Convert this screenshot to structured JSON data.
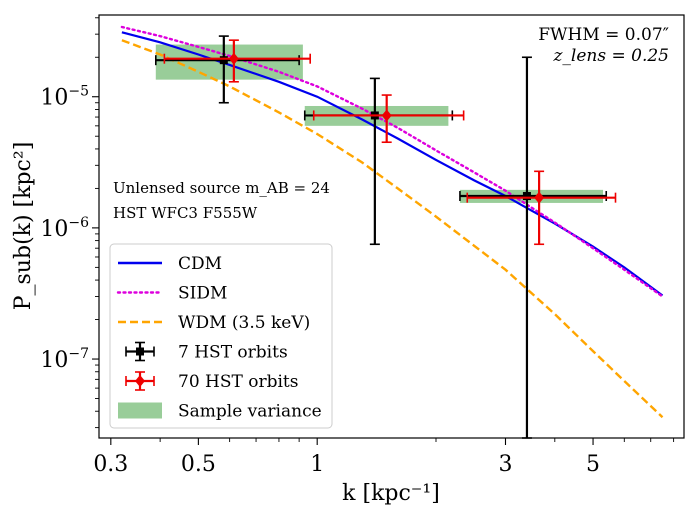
{
  "chart_data": {
    "type": "line",
    "xscale": "log",
    "yscale": "log",
    "xlim": [
      0.28,
      8.5
    ],
    "ylim": [
      2.5e-08,
      4.2e-05
    ],
    "xlabel": "k [kpc⁻¹]",
    "ylabel": "P_sub(k) [kpc²]",
    "xticks": [
      {
        "value": 0.3,
        "label": "0.3"
      },
      {
        "value": 0.5,
        "label": "0.5"
      },
      {
        "value": 1,
        "label": "1"
      },
      {
        "value": 3,
        "label": "3"
      },
      {
        "value": 5,
        "label": "5"
      }
    ],
    "yticks": [
      {
        "value": 1e-07,
        "base": "10",
        "exp": "−7"
      },
      {
        "value": 1e-06,
        "base": "10",
        "exp": "−6"
      },
      {
        "value": 1e-05,
        "base": "10",
        "exp": "−5"
      }
    ],
    "annotations": {
      "fwhm": "FWHM = 0.07″",
      "zlens": "z_lens = 0.25",
      "source": "Unlensed source m_AB = 24",
      "instrument": "HST WFC3 F555W"
    },
    "series": [
      {
        "name": "CDM",
        "style": "solid",
        "color": "#0000ee",
        "x": [
          0.32,
          0.4,
          0.5,
          0.6,
          0.8,
          1.0,
          1.3,
          1.6,
          2.0,
          2.5,
          3.0,
          3.5,
          4.0,
          5.0,
          6.0,
          7.5
        ],
        "y": [
          3.1e-05,
          2.6e-05,
          2.1e-05,
          1.75e-05,
          1.3e-05,
          1e-05,
          6.7e-06,
          4.8e-06,
          3.3e-06,
          2.3e-06,
          1.75e-06,
          1.35e-06,
          1.08e-06,
          7.2e-07,
          5e-07,
          3.05e-07
        ]
      },
      {
        "name": "SIDM",
        "style": "dotted",
        "color": "#dd00dd",
        "x": [
          0.32,
          0.4,
          0.5,
          0.6,
          0.8,
          1.0,
          1.3,
          1.6,
          2.0,
          2.5,
          3.0,
          3.5,
          4.0,
          5.0,
          6.0,
          7.5
        ],
        "y": [
          3.4e-05,
          2.9e-05,
          2.4e-05,
          2.05e-05,
          1.55e-05,
          1.2e-05,
          8.1e-06,
          5.8e-06,
          3.9e-06,
          2.65e-06,
          1.92e-06,
          1.42e-06,
          1.1e-06,
          7e-07,
          4.8e-07,
          3e-07
        ]
      },
      {
        "name": "WDM (3.5 keV)",
        "style": "dashed",
        "color": "#ffa500",
        "x": [
          0.32,
          0.4,
          0.5,
          0.6,
          0.8,
          1.0,
          1.3,
          1.6,
          2.0,
          2.5,
          3.0,
          4.0,
          5.0,
          6.0,
          7.5
        ],
        "y": [
          2.7e-05,
          2.1e-05,
          1.55e-05,
          1.2e-05,
          7.6e-06,
          5.2e-06,
          3.15e-06,
          2e-06,
          1.22e-06,
          7.3e-07,
          4.8e-07,
          2.2e-07,
          1.15e-07,
          6.8e-08,
          3.6e-08
        ]
      }
    ],
    "errorbars": [
      {
        "name": "7 HST orbits",
        "color": "#000000",
        "points": [
          {
            "x": 0.58,
            "y": 1.9e-05,
            "xerr": [
              0.39,
              0.9
            ],
            "yerr": [
              9e-06,
              2.9e-05
            ]
          },
          {
            "x": 1.4,
            "y": 7.2e-06,
            "xerr": [
              0.93,
              2.2
            ],
            "yerr": [
              7.5e-07,
              1.38e-05
            ]
          },
          {
            "x": 3.4,
            "y": 1.75e-06,
            "xerr": [
              2.3,
              5.4
            ],
            "yerr": [
              2.5e-08,
              2e-05
            ]
          }
        ]
      },
      {
        "name": "70 HST orbits",
        "color": "#ee0000",
        "points": [
          {
            "x": 0.615,
            "y": 1.95e-05,
            "xerr": [
              0.41,
              0.96
            ],
            "yerr": [
              1.3e-05,
              2.7e-05
            ]
          },
          {
            "x": 1.5,
            "y": 7.2e-06,
            "xerr": [
              0.98,
              2.35
            ],
            "yerr": [
              4.5e-06,
              1.03e-05
            ]
          },
          {
            "x": 3.65,
            "y": 1.7e-06,
            "xerr": [
              2.4,
              5.7
            ],
            "yerr": [
              7.5e-07,
              2.7e-06
            ]
          }
        ]
      }
    ],
    "sample_variance": {
      "name": "Sample variance",
      "color": "#7fc07f",
      "boxes": [
        {
          "x0": 0.39,
          "x1": 0.92,
          "y0": 1.35e-05,
          "y1": 2.5e-05
        },
        {
          "x0": 0.93,
          "x1": 2.15,
          "y0": 6e-06,
          "y1": 8.5e-06
        },
        {
          "x0": 2.3,
          "x1": 5.3,
          "y0": 1.55e-06,
          "y1": 1.95e-06
        }
      ]
    },
    "legend": {
      "position": "lower-left",
      "entries": [
        "CDM",
        "SIDM",
        "WDM (3.5 keV)",
        "7 HST orbits",
        "70 HST orbits",
        "Sample variance"
      ]
    }
  }
}
